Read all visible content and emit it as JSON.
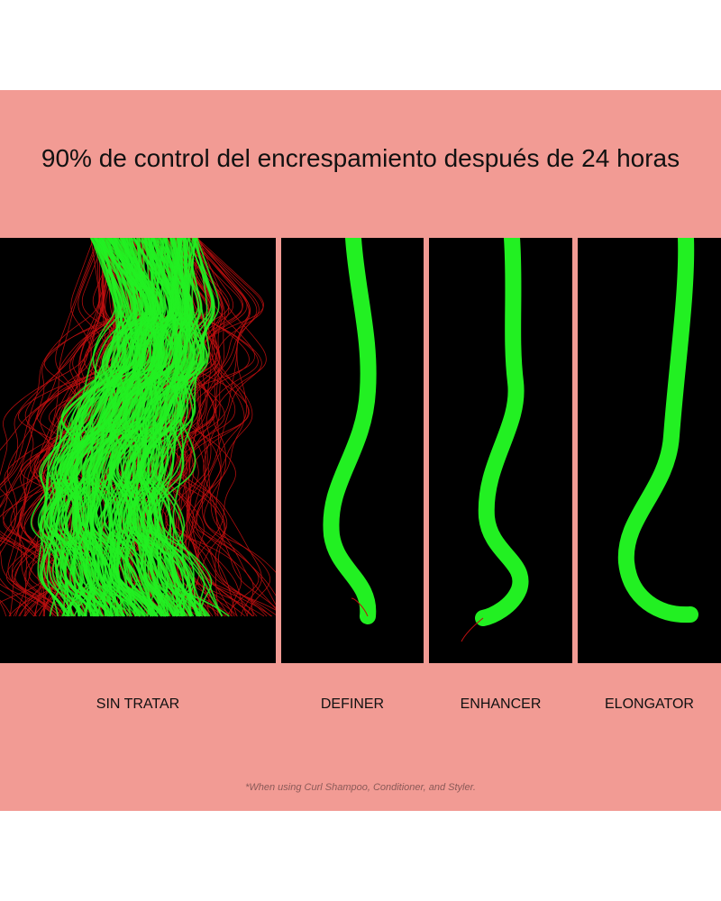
{
  "title": "90% de control del encrespamiento después de 24 horas",
  "panels": [
    {
      "label": "SIN TRATAR"
    },
    {
      "label": "DEFINER"
    },
    {
      "label": "ENHANCER"
    },
    {
      "label": "ELONGATOR"
    }
  ],
  "footnote": "*When using Curl Shampoo, Conditioner, and Styler.",
  "colors": {
    "background": "#f29b94",
    "hair": "#22f022",
    "frizz": "#c01010",
    "panel": "#000000"
  }
}
